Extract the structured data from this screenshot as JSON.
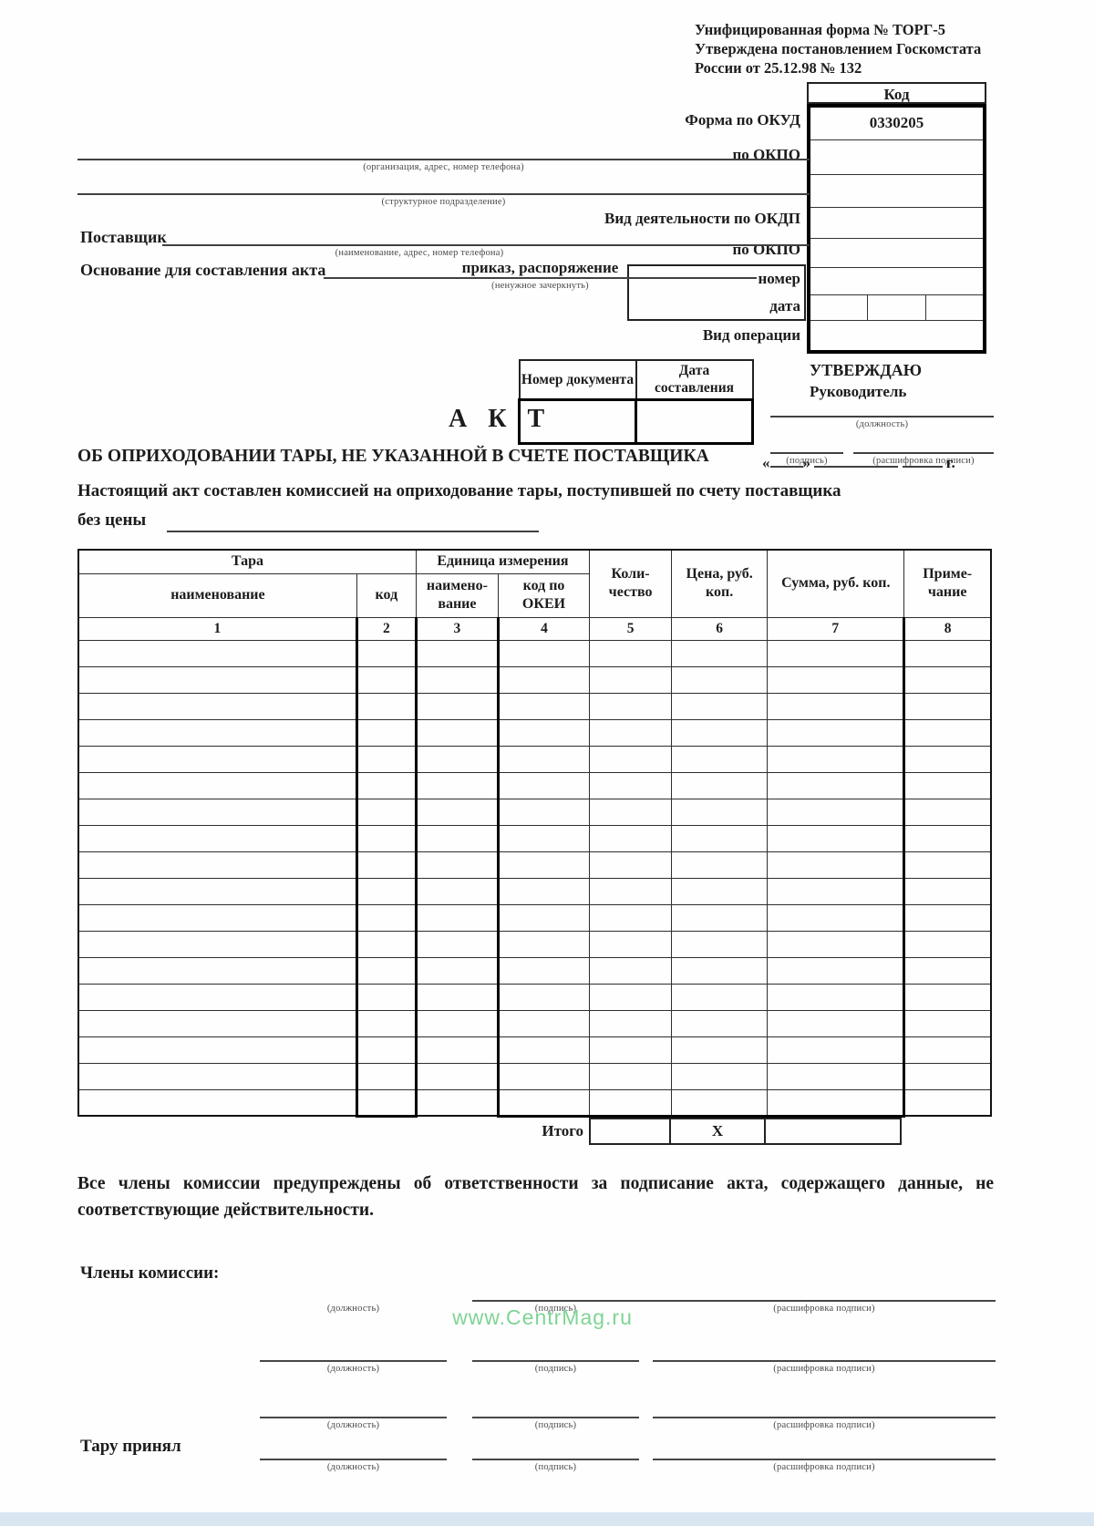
{
  "meta": {
    "watermark": "www.CentrMag.ru",
    "watermark_color": "#7fd494",
    "bottom_bar_color": "#d9e6f1"
  },
  "top_note": {
    "lines": [
      "Унифицированная форма № ТОРГ-5",
      "Утверждена постановлением Госкомстата",
      "России от 25.12.98 № 132"
    ]
  },
  "codes": {
    "header": "Код",
    "okud_label": "Форма по ОКУД",
    "okud_value": "0330205",
    "okpo1_label": "по ОКПО",
    "okdp_label": "Вид деятельности по ОКДП",
    "okpo2_label": "по ОКПО",
    "number_label": "номер",
    "date_label": "дата",
    "operation_label": "Вид операции"
  },
  "org": {
    "org_caption": "(организация, адрес, номер телефона)",
    "division_caption": "(структурное подразделение)",
    "supplier_label": "Поставщик",
    "supplier_caption": "(наименование, адрес, номер телефона)",
    "basis_label": "Основание для составления акта",
    "basis_value": "приказ, распоряжение",
    "basis_caption": "(ненужное зачеркнуть)"
  },
  "approval": {
    "approve": "УТВЕРЖДАЮ",
    "role": "Руководитель",
    "position_caption": "(должность)",
    "signature_caption": "(подпись)",
    "decode_caption": "(расшифровка подписи)"
  },
  "doc": {
    "number_header": "Номер документа",
    "date_header": "Дата составления",
    "title": "А К Т",
    "subtitle": "ОБ ОПРИХОДОВАНИИ ТАРЫ, НЕ УКАЗАННОЙ В СЧЕТЕ ПОСТАВЩИКА",
    "quote_open": "«",
    "quote_close": "»",
    "year_suffix": "г.",
    "intro": "Настоящий акт составлен комиссией на оприходование тары, поступившей по счету поставщика",
    "no_price_label": "без цены"
  },
  "table": {
    "group_tara": "Тара",
    "group_unit": "Единица измерения",
    "h_name": "наименование",
    "h_code": "код",
    "h_unit_name": "наимено-вание",
    "h_unit_code": "код по ОКЕИ",
    "h_qty": "Коли-чество",
    "h_price": "Цена, руб. коп.",
    "h_sum": "Сумма, руб. коп.",
    "h_note": "Приме-чание",
    "col_numbers": [
      "1",
      "2",
      "3",
      "4",
      "5",
      "6",
      "7",
      "8"
    ],
    "empty_row_count": 18,
    "total_label": "Итого",
    "total_price_mark": "X"
  },
  "footer": {
    "warning": "Все члены комиссии предупреждены об ответственности за подписание акта, содержащего данные, не соответствующие действительности.",
    "members_label": "Члены комиссии:",
    "received_label": "Тару принял",
    "position_caption": "(должность)",
    "signature_caption": "(подпись)",
    "decode_caption": "(расшифровка подписи)"
  }
}
